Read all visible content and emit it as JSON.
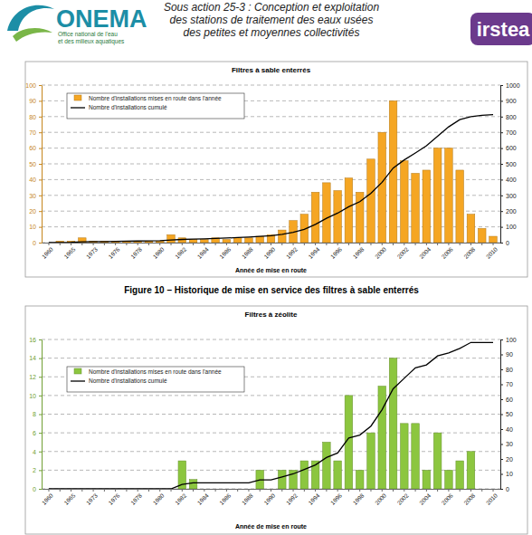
{
  "header": {
    "logo_left": "ONEMA",
    "logo_left_subtitle": [
      "Office national de l'eau",
      "et des milieux aquatiques"
    ],
    "lines": [
      "Sous action 25-3 : Conception et exploitation",
      "des stations de traitement des eaux usées",
      "des petites et moyennes collectivités"
    ],
    "logo_right": "irstea"
  },
  "chart_data": [
    {
      "type": "bar",
      "title": "Filtres à sable enterrés",
      "x_label": "Année de mise en route",
      "caption": "Figure 10 – Historique de mise en service des filtres à sable enterrés",
      "categories": [
        "1960",
        null,
        "1965",
        null,
        "1973",
        null,
        "1976",
        null,
        "1978",
        null,
        "1980",
        null,
        "1982",
        null,
        "1984",
        null,
        "1986",
        null,
        "1988",
        null,
        "1990",
        null,
        "1992",
        null,
        "1994",
        null,
        "1996",
        null,
        "1998",
        null,
        "2000",
        null,
        "2002",
        null,
        "2004",
        null,
        "2006",
        null,
        "2008",
        null,
        "2010"
      ],
      "series": [
        {
          "name": "Nombre d'installations mises en route dans l'année",
          "type": "bar",
          "color": "#f5a623",
          "values": [
            0,
            1,
            1,
            3,
            1,
            1,
            1,
            1,
            1,
            1,
            1,
            5,
            3,
            2,
            2,
            3,
            2,
            3,
            3,
            4,
            5,
            8,
            14,
            18,
            32,
            38,
            33,
            41,
            32,
            53,
            70,
            90,
            52,
            44,
            46,
            60,
            60,
            46,
            18,
            9,
            4
          ]
        },
        {
          "name": "Nombre d'installations cumulé",
          "type": "line",
          "color": "#000000",
          "axis": "y2",
          "values": [
            0,
            1,
            2,
            5,
            6,
            7,
            8,
            9,
            10,
            11,
            12,
            17,
            20,
            22,
            24,
            27,
            29,
            32,
            35,
            39,
            44,
            52,
            66,
            84,
            116,
            154,
            187,
            228,
            260,
            313,
            383,
            473,
            525,
            569,
            615,
            675,
            735,
            781,
            799,
            808,
            812
          ]
        }
      ],
      "ylim": [
        0,
        100
      ],
      "yticks": [
        0,
        10,
        20,
        30,
        40,
        50,
        60,
        70,
        80,
        90,
        100
      ],
      "y2lim": [
        0,
        1000
      ],
      "y2ticks": [
        0,
        100,
        200,
        300,
        400,
        500,
        600,
        700,
        800,
        900,
        1000
      ],
      "grid": true,
      "legend": "upper left"
    },
    {
      "type": "bar",
      "title": "Filtres à zéolite",
      "x_label": "Année de mise en route",
      "categories": [
        "1960",
        null,
        "1965",
        null,
        "1973",
        null,
        "1976",
        null,
        "1978",
        null,
        "1980",
        null,
        "1982",
        null,
        "1984",
        null,
        "1986",
        null,
        "1988",
        null,
        "1990",
        null,
        "1992",
        null,
        "1994",
        null,
        "1996",
        null,
        "1998",
        null,
        "2000",
        null,
        "2002",
        null,
        "2004",
        null,
        "2006",
        null,
        "2008",
        null,
        "2010"
      ],
      "series": [
        {
          "name": "Nombre d'installations mises en route dans l'année",
          "type": "bar",
          "color": "#8cc63f",
          "values": [
            0,
            0,
            0,
            0,
            0,
            0,
            0,
            0,
            0,
            0,
            0,
            0,
            3,
            1,
            0,
            0,
            0,
            0,
            0,
            2,
            0,
            2,
            2,
            3,
            3,
            5,
            3,
            10,
            2,
            6,
            11,
            14,
            7,
            7,
            2,
            6,
            2,
            3,
            4,
            0,
            0
          ]
        },
        {
          "name": "Nombre d'installations cumulé",
          "type": "line",
          "color": "#000000",
          "axis": "y2",
          "values": [
            0,
            0,
            0,
            0,
            0,
            0,
            0,
            0,
            0,
            0,
            0,
            0,
            3,
            4,
            4,
            4,
            4,
            4,
            4,
            6,
            6,
            8,
            10,
            13,
            16,
            21,
            24,
            34,
            36,
            42,
            53,
            67,
            74,
            81,
            83,
            89,
            91,
            94,
            98,
            98,
            98
          ]
        }
      ],
      "ylim": [
        0,
        16
      ],
      "yticks": [
        0,
        2,
        4,
        6,
        8,
        10,
        12,
        14,
        16
      ],
      "y2lim": [
        0,
        100
      ],
      "y2ticks": [
        0,
        10,
        20,
        30,
        40,
        50,
        60,
        70,
        80,
        90,
        100
      ],
      "grid": true,
      "legend": "upper left"
    }
  ]
}
